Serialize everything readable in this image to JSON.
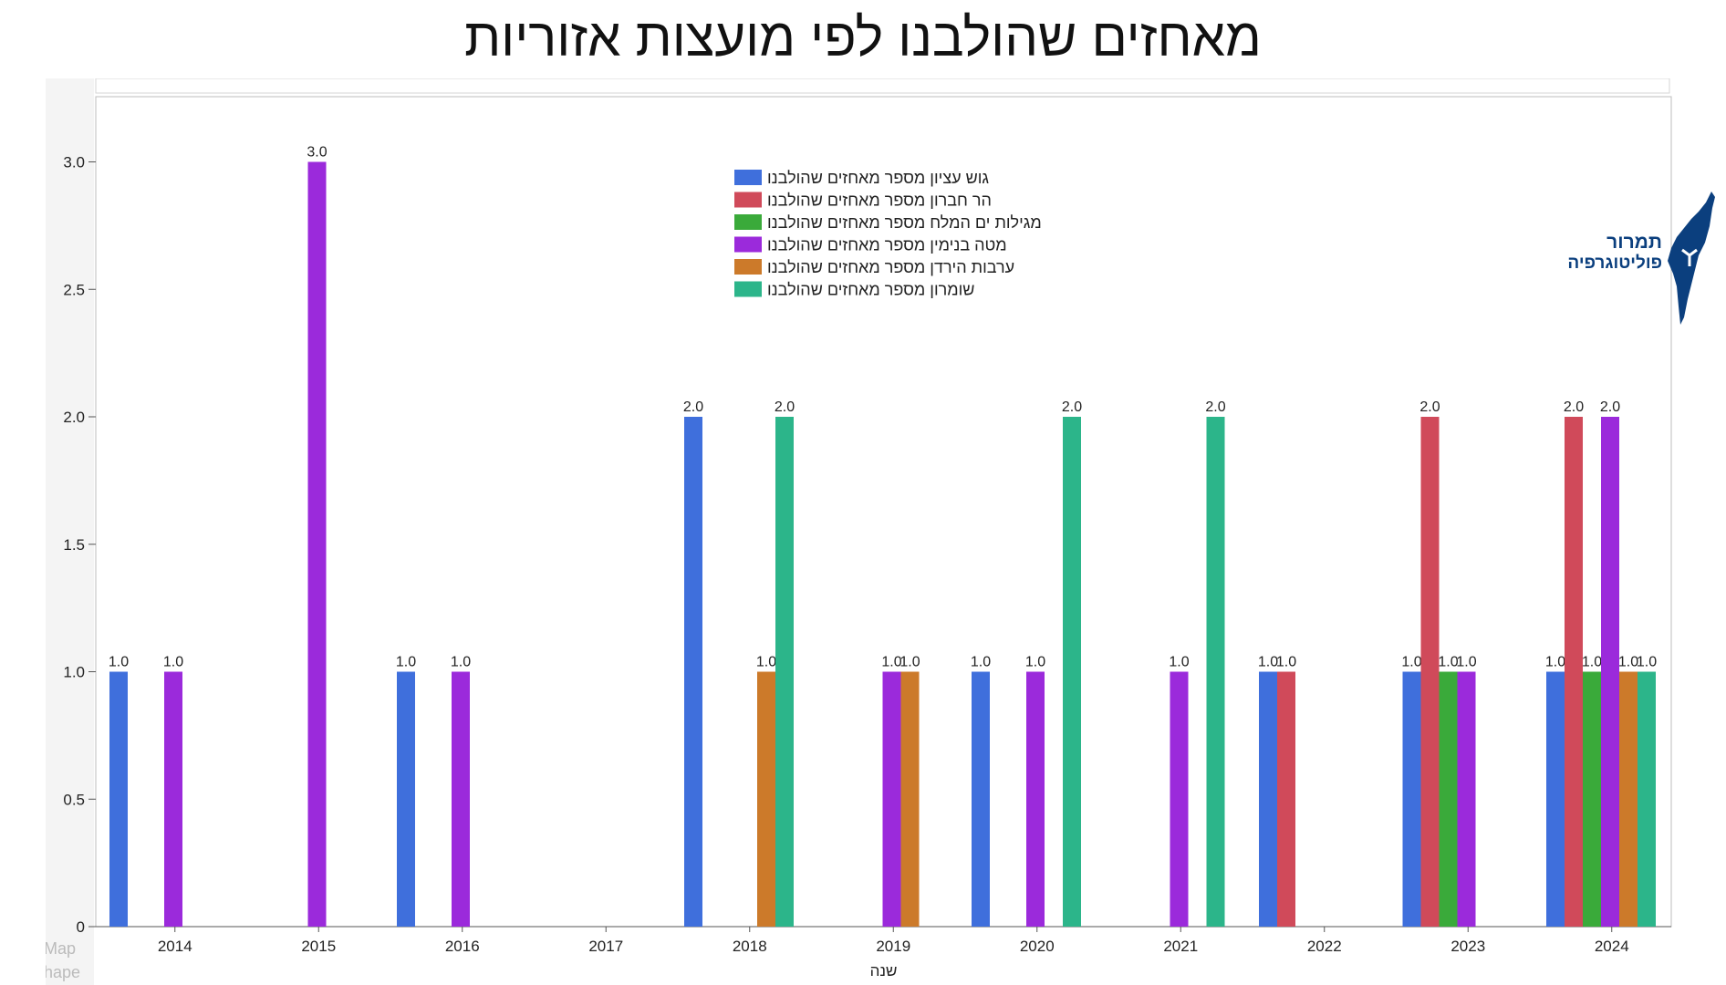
{
  "title": "מאחזים שהולבנו לפי מועצות אזוריות",
  "logo": {
    "line1": "תמרור",
    "line2": "פוליטוגרפיה",
    "color": "#0b3f7e"
  },
  "chart_data": {
    "type": "bar",
    "xlabel": "שנה",
    "ylabel": "",
    "ylim": [
      0,
      3.25
    ],
    "yticks": [
      "0",
      "0.5",
      "1.0",
      "1.5",
      "2.0",
      "2.5",
      "3.0"
    ],
    "categories": [
      "2014",
      "2015",
      "2016",
      "2017",
      "2018",
      "2019",
      "2020",
      "2021",
      "2022",
      "2023",
      "2024"
    ],
    "legend_position": "top-center",
    "grid": false,
    "series": [
      {
        "name": "גוש עציון מספר מאחזים שהולבנו",
        "color": "#3f6fdc",
        "values": [
          1,
          0,
          1,
          0,
          2,
          0,
          1,
          0,
          1,
          1,
          1
        ]
      },
      {
        "name": "הר חברון מספר מאחזים שהולבנו",
        "color": "#d04a5a",
        "values": [
          0,
          0,
          0,
          0,
          0,
          0,
          0,
          0,
          1,
          2,
          2
        ]
      },
      {
        "name": "מגילות ים המלח מספר מאחזים שהולבנו",
        "color": "#3aaa3a",
        "values": [
          0,
          0,
          0,
          0,
          0,
          0,
          0,
          0,
          0,
          1,
          1
        ]
      },
      {
        "name": "מטה בנימין מספר מאחזים שהולבנו",
        "color": "#9b2adb",
        "values": [
          1,
          3,
          1,
          0,
          0,
          1,
          1,
          1,
          0,
          1,
          2
        ]
      },
      {
        "name": "ערבות הירדן מספר מאחזים שהולבנו",
        "color": "#cc7a2a",
        "values": [
          0,
          0,
          0,
          0,
          1,
          1,
          0,
          0,
          0,
          0,
          1
        ]
      },
      {
        "name": "שומרון מספר מאחזים שהולבנו",
        "color": "#2cb58a",
        "values": [
          0,
          0,
          0,
          0,
          2,
          0,
          2,
          2,
          0,
          0,
          1
        ]
      }
    ],
    "watermark": [
      "Map",
      "hape"
    ]
  }
}
